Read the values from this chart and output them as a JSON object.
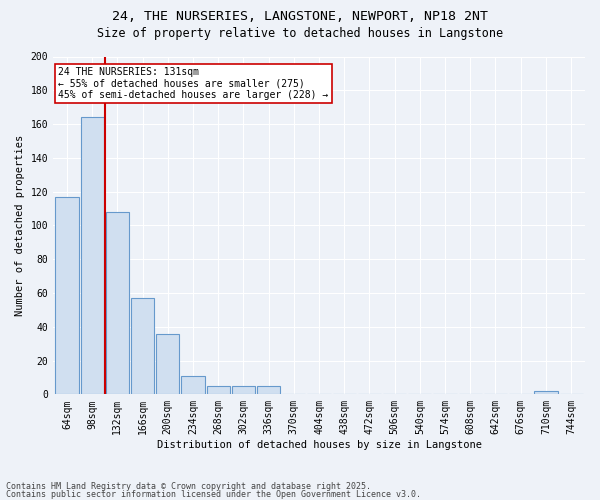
{
  "title_line1": "24, THE NURSERIES, LANGSTONE, NEWPORT, NP18 2NT",
  "title_line2": "Size of property relative to detached houses in Langstone",
  "xlabel": "Distribution of detached houses by size in Langstone",
  "ylabel": "Number of detached properties",
  "categories": [
    "64sqm",
    "98sqm",
    "132sqm",
    "166sqm",
    "200sqm",
    "234sqm",
    "268sqm",
    "302sqm",
    "336sqm",
    "370sqm",
    "404sqm",
    "438sqm",
    "472sqm",
    "506sqm",
    "540sqm",
    "574sqm",
    "608sqm",
    "642sqm",
    "676sqm",
    "710sqm",
    "744sqm"
  ],
  "values": [
    117,
    164,
    108,
    57,
    36,
    11,
    5,
    5,
    5,
    0,
    0,
    0,
    0,
    0,
    0,
    0,
    0,
    0,
    0,
    2,
    0
  ],
  "bar_color": "#d0dff0",
  "bar_edge_color": "#6699cc",
  "vline_color": "#cc0000",
  "vline_index": 1.5,
  "annotation_text": "24 THE NURSERIES: 131sqm\n← 55% of detached houses are smaller (275)\n45% of semi-detached houses are larger (228) →",
  "annotation_box_color": "#ffffff",
  "annotation_box_edge_color": "#cc0000",
  "annotation_fontsize": 7.0,
  "ylim": [
    0,
    200
  ],
  "yticks": [
    0,
    20,
    40,
    60,
    80,
    100,
    120,
    140,
    160,
    180,
    200
  ],
  "bg_color": "#eef2f8",
  "plot_bg_color": "#eef2f8",
  "grid_color": "#ffffff",
  "footer_line1": "Contains HM Land Registry data © Crown copyright and database right 2025.",
  "footer_line2": "Contains public sector information licensed under the Open Government Licence v3.0.",
  "footer_fontsize": 6.0,
  "title1_fontsize": 9.5,
  "title2_fontsize": 8.5,
  "axis_label_fontsize": 7.5,
  "tick_fontsize": 7.0
}
